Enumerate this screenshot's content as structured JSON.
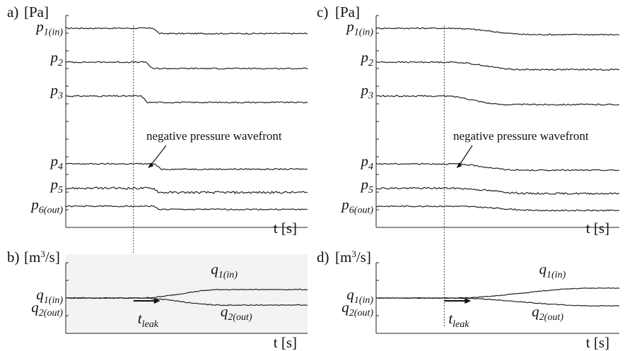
{
  "chart_data": [
    {
      "id": "a",
      "type": "line",
      "panel_label": "a)",
      "unit_label": "[Pa]",
      "xlabel": "t [s]",
      "annotation": "negative pressure wavefront",
      "leak_start_fraction": 0.28,
      "background": "#ffffff",
      "series": [
        {
          "name": "p",
          "sub": "1(in)",
          "level_before": 0.94,
          "level_after": 0.915,
          "drop_at": 0.36,
          "ramp": 0.03,
          "noise": 0.003
        },
        {
          "name": "p",
          "sub": "2",
          "level_before": 0.78,
          "level_after": 0.75,
          "drop_at": 0.33,
          "ramp": 0.03,
          "noise": 0.003
        },
        {
          "name": "p",
          "sub": "3",
          "level_before": 0.62,
          "level_after": 0.59,
          "drop_at": 0.31,
          "ramp": 0.03,
          "noise": 0.003
        },
        {
          "name": "p",
          "sub": "4",
          "level_before": 0.3,
          "level_after": 0.275,
          "drop_at": 0.36,
          "ramp": 0.04,
          "noise": 0.003
        },
        {
          "name": "p",
          "sub": "5",
          "level_before": 0.185,
          "level_after": 0.165,
          "drop_at": 0.36,
          "ramp": 0.03,
          "noise": 0.005
        },
        {
          "name": "p",
          "sub": "6(out)",
          "level_before": 0.1,
          "level_after": 0.085,
          "drop_at": 0.36,
          "ramp": 0.03,
          "noise": 0.003
        }
      ]
    },
    {
      "id": "c",
      "type": "line",
      "panel_label": "c)",
      "unit_label": "[Pa]",
      "xlabel": "t [s]",
      "annotation": "negative pressure wavefront",
      "leak_start_fraction": 0.28,
      "background": "#ffffff",
      "series": [
        {
          "name": "p",
          "sub": "1(in)",
          "level_before": 0.94,
          "level_after": 0.91,
          "drop_at": 0.3,
          "ramp": 0.35,
          "noise": 0.003
        },
        {
          "name": "p",
          "sub": "2",
          "level_before": 0.78,
          "level_after": 0.745,
          "drop_at": 0.3,
          "ramp": 0.3,
          "noise": 0.003
        },
        {
          "name": "p",
          "sub": "3",
          "level_before": 0.62,
          "level_after": 0.58,
          "drop_at": 0.28,
          "ramp": 0.25,
          "noise": 0.003
        },
        {
          "name": "p",
          "sub": "4",
          "level_before": 0.3,
          "level_after": 0.27,
          "drop_at": 0.3,
          "ramp": 0.3,
          "noise": 0.003
        },
        {
          "name": "p",
          "sub": "5",
          "level_before": 0.185,
          "level_after": 0.16,
          "drop_at": 0.3,
          "ramp": 0.35,
          "noise": 0.004
        },
        {
          "name": "p",
          "sub": "6(out)",
          "level_before": 0.1,
          "level_after": 0.08,
          "drop_at": 0.3,
          "ramp": 0.4,
          "noise": 0.003
        }
      ]
    },
    {
      "id": "b",
      "type": "line",
      "panel_label": "b)",
      "unit_base": "[m",
      "unit_sup": "3",
      "unit_tail": "/s]",
      "xlabel": "t [s]",
      "leak_label": "t",
      "leak_sub": "leak",
      "leak_start_fraction": 0.28,
      "background": "#f3f3f3",
      "series": [
        {
          "name": "q",
          "sub": "1(in)",
          "level_before": 0.5,
          "level_after": 0.62,
          "drop_at": 0.3,
          "ramp": 0.35,
          "noise": 0.006
        },
        {
          "name": "q",
          "sub": "2(out)",
          "level_before": 0.5,
          "level_after": 0.4,
          "drop_at": 0.3,
          "ramp": 0.35,
          "noise": 0.006
        }
      ]
    },
    {
      "id": "d",
      "type": "line",
      "panel_label": "d)",
      "unit_base": "[m",
      "unit_sup": "3",
      "unit_tail": "/s]",
      "xlabel": "t [s]",
      "leak_label": "t",
      "leak_sub": "leak",
      "leak_start_fraction": 0.28,
      "background": "#ffffff",
      "series": [
        {
          "name": "q",
          "sub": "1(in)",
          "level_before": 0.5,
          "level_after": 0.64,
          "drop_at": 0.3,
          "ramp": 0.6,
          "noise": 0.005
        },
        {
          "name": "q",
          "sub": "2(out)",
          "level_before": 0.5,
          "level_after": 0.39,
          "drop_at": 0.3,
          "ramp": 0.6,
          "noise": 0.005
        }
      ]
    }
  ]
}
